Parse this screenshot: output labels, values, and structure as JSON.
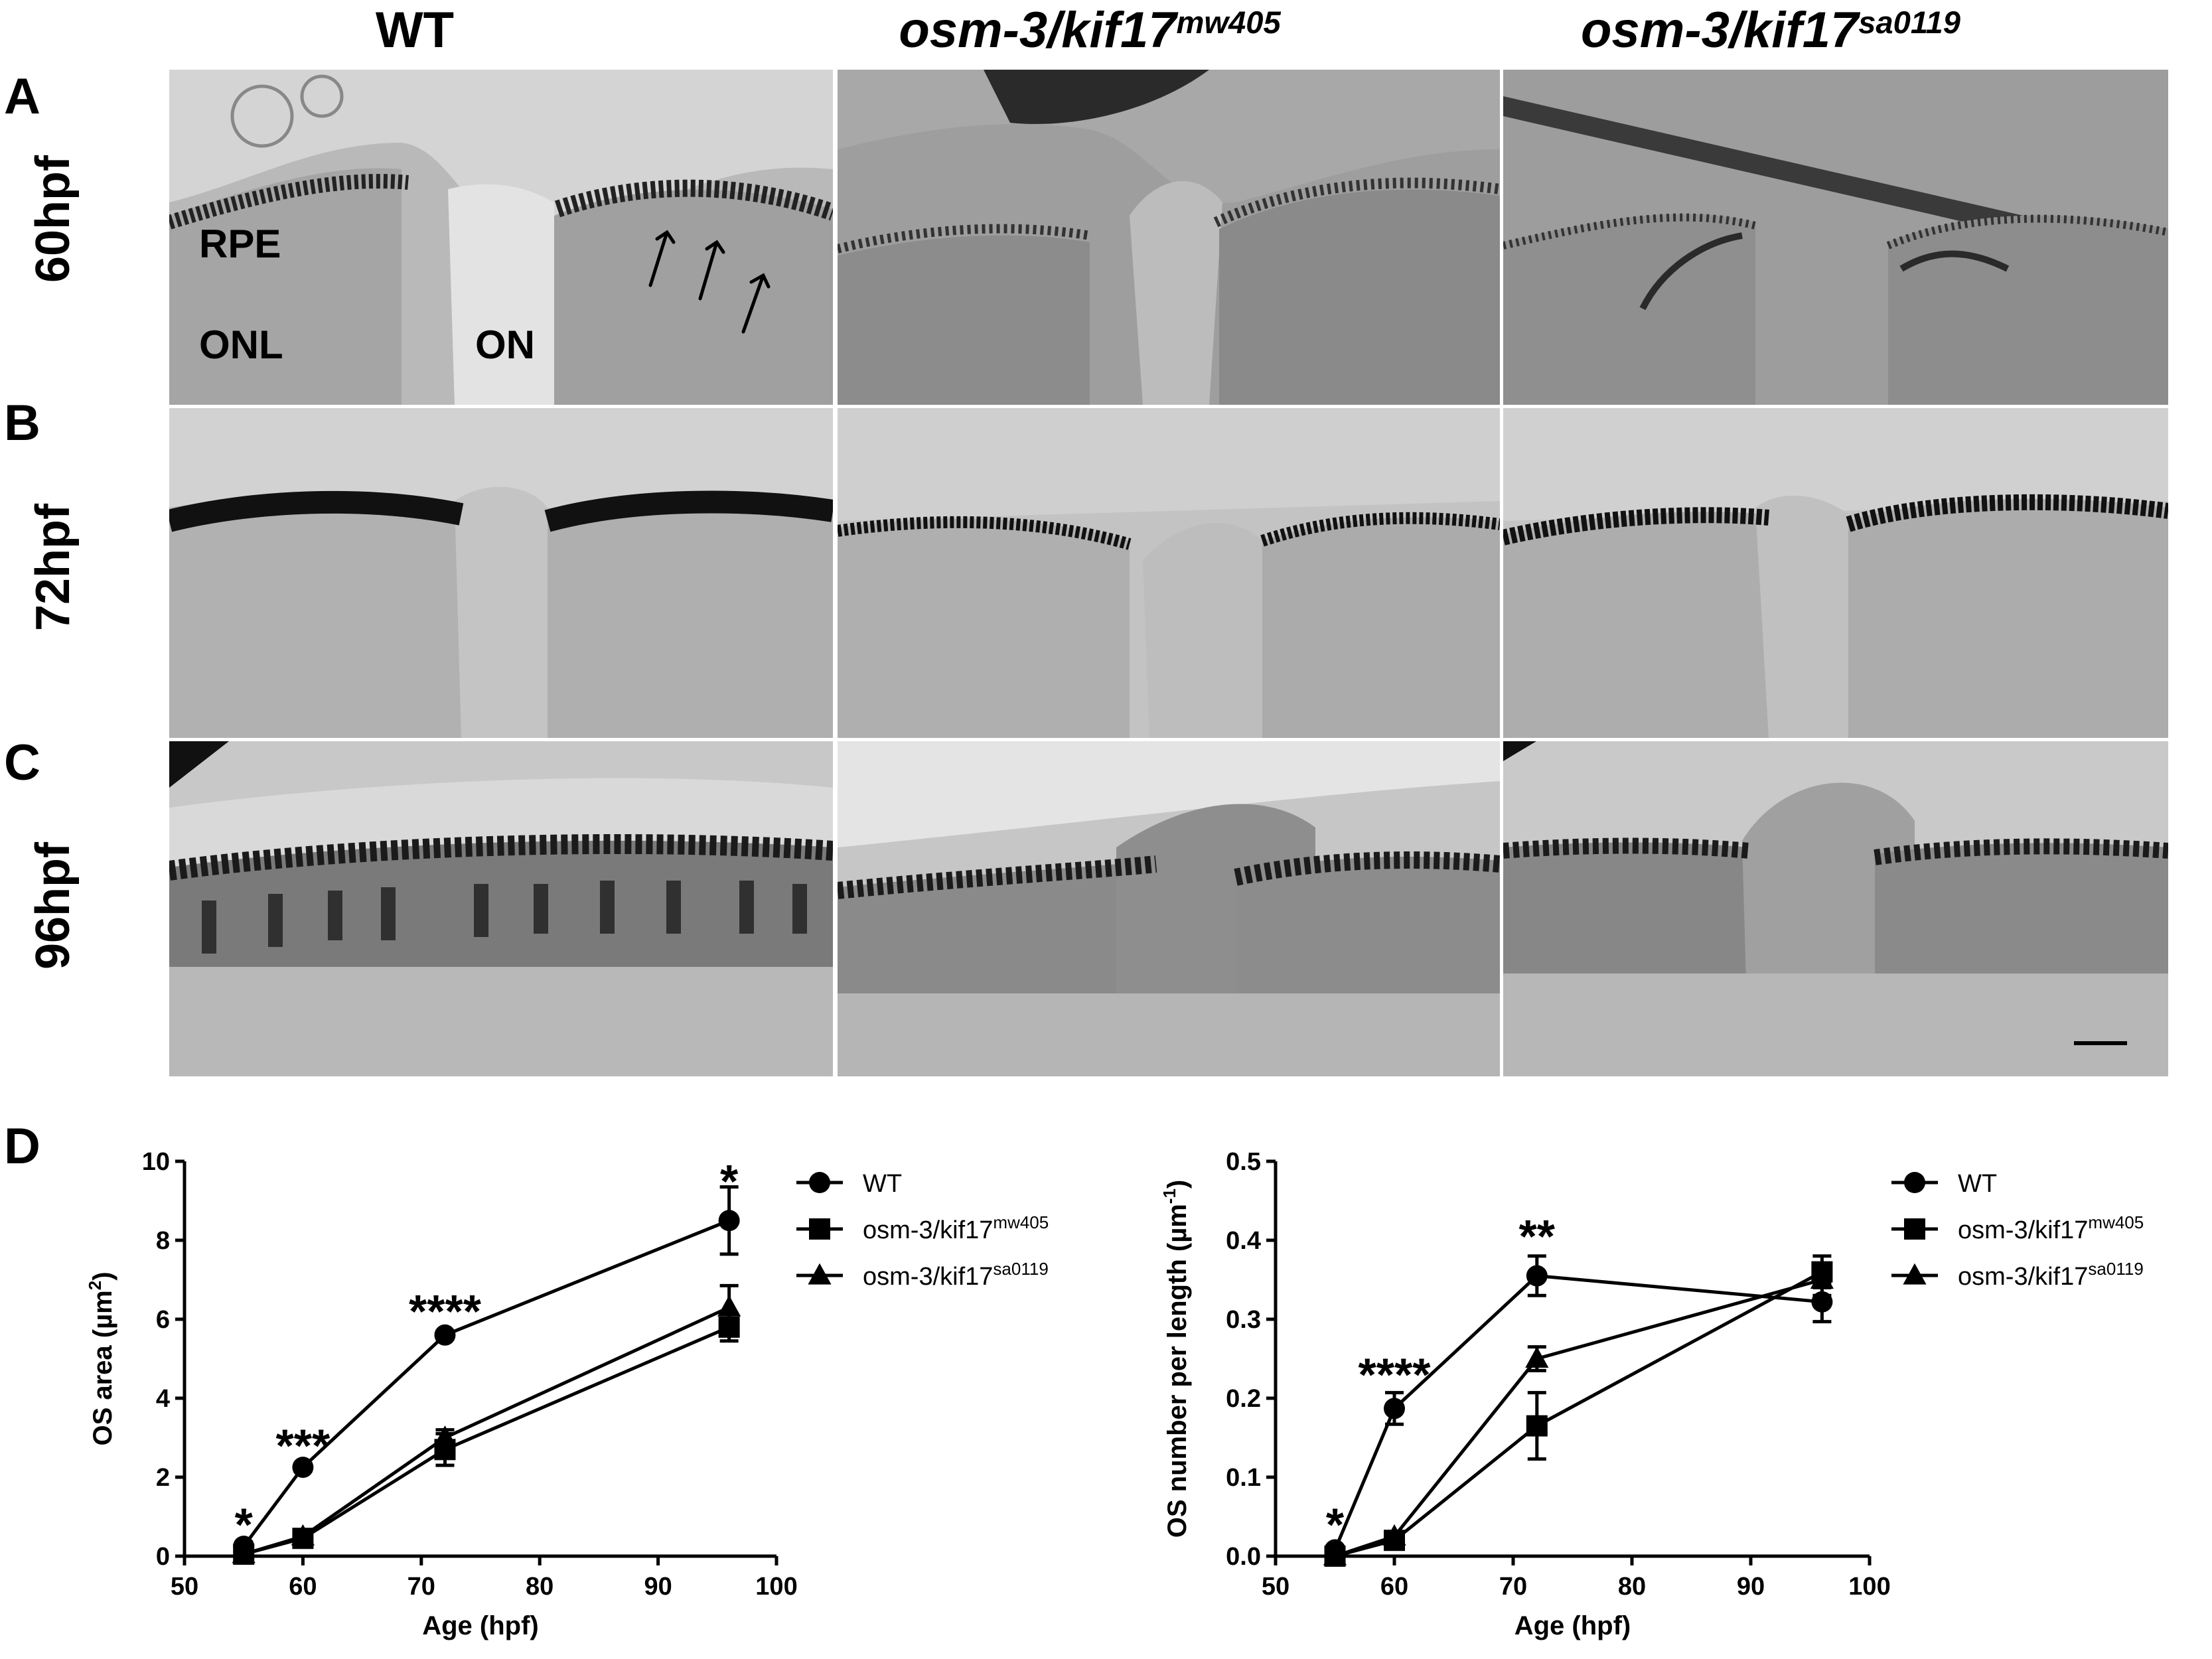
{
  "columns": {
    "wt": {
      "title": "WT"
    },
    "mw405": {
      "base": "osm-3/kif17",
      "sup": "mw405"
    },
    "sa0119": {
      "base": "osm-3/kif17",
      "sup": "sa0119"
    }
  },
  "panels": {
    "a": {
      "letter": "A",
      "row_label": "60hpf"
    },
    "b": {
      "letter": "B",
      "row_label": "72hpf"
    },
    "c": {
      "letter": "C",
      "row_label": "96hpf"
    },
    "d": {
      "letter": "D"
    }
  },
  "annotations": {
    "rpe": "RPE",
    "onl": "ONL",
    "on": "ON"
  },
  "colors": {
    "tissue_light": "#c9c9c9",
    "tissue_mid": "#9a9a9a",
    "pigment": "#1e1e1e",
    "ink": "#000000"
  },
  "chart_data": [
    {
      "type": "line",
      "xlabel": "Age (hpf)",
      "ylabel_base": "OS area (µm",
      "ylabel_sup": "2",
      "ylabel_tail": ")",
      "xlim": [
        50,
        100
      ],
      "ylim": [
        0,
        10
      ],
      "xticks": [
        50,
        60,
        70,
        80,
        90,
        100
      ],
      "yticks": [
        0,
        2,
        4,
        6,
        8,
        10
      ],
      "x": [
        55,
        60,
        72,
        96
      ],
      "series": [
        {
          "name": "WT",
          "marker": "circle",
          "values": [
            0.25,
            2.25,
            5.6,
            8.5
          ],
          "err": [
            0.1,
            0.1,
            0.1,
            0.85
          ]
        },
        {
          "name_base": "osm-3/kif17",
          "name_sup": "mw405",
          "marker": "square",
          "values": [
            0.05,
            0.45,
            2.7,
            5.8
          ],
          "err": [
            0.05,
            0.1,
            0.4,
            0.35
          ]
        },
        {
          "name_base": "osm-3/kif17",
          "name_sup": "sa0119",
          "marker": "triangle",
          "values": [
            0.05,
            0.5,
            3.0,
            6.3
          ],
          "err": [
            0.05,
            0.1,
            0.2,
            0.55
          ]
        }
      ],
      "significance": [
        {
          "x": 55,
          "y": 0.9,
          "label": "*"
        },
        {
          "x": 60,
          "y": 2.9,
          "label": "***"
        },
        {
          "x": 72,
          "y": 6.3,
          "label": "****"
        },
        {
          "x": 96,
          "y": 9.6,
          "label": "*"
        }
      ],
      "legend": "right"
    },
    {
      "type": "line",
      "xlabel": "Age (hpf)",
      "ylabel_base": "OS number per length  (µm",
      "ylabel_sup": "-1",
      "ylabel_tail": ")",
      "xlim": [
        50,
        100
      ],
      "ylim": [
        0.0,
        0.5
      ],
      "xticks": [
        50,
        60,
        70,
        80,
        90,
        100
      ],
      "yticks": [
        "0.0",
        "0.1",
        "0.2",
        "0.3",
        "0.4",
        "0.5"
      ],
      "x": [
        55,
        60,
        72,
        96
      ],
      "series": [
        {
          "name": "WT",
          "marker": "circle",
          "values": [
            0.008,
            0.187,
            0.355,
            0.322
          ],
          "err": [
            0.005,
            0.02,
            0.025,
            0.025
          ]
        },
        {
          "name_base": "osm-3/kif17",
          "name_sup": "mw405",
          "marker": "square",
          "values": [
            0.0,
            0.02,
            0.165,
            0.36
          ],
          "err": [
            0.002,
            0.005,
            0.042,
            0.02
          ]
        },
        {
          "name_base": "osm-3/kif17",
          "name_sup": "sa0119",
          "marker": "triangle",
          "values": [
            0.0,
            0.025,
            0.25,
            0.35
          ],
          "err": [
            0.002,
            0.005,
            0.015,
            0.02
          ]
        }
      ],
      "significance": [
        {
          "x": 55,
          "y": 0.045,
          "label": "*"
        },
        {
          "x": 60,
          "y": 0.235,
          "label": "****"
        },
        {
          "x": 72,
          "y": 0.41,
          "label": "**"
        }
      ],
      "legend": "right"
    }
  ]
}
